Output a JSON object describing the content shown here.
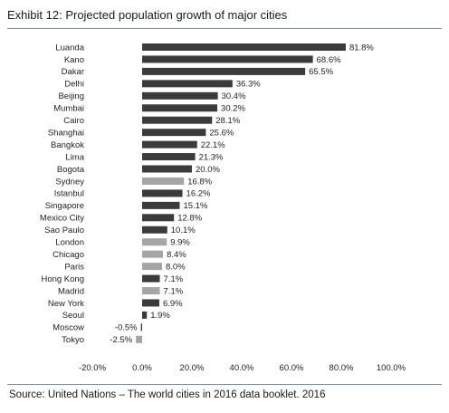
{
  "header": {
    "title": "Exhibit 12: Projected population growth of major cities"
  },
  "footer": {
    "source": "Source: United Nations – The world cities in 2016 data booklet. 2016"
  },
  "colors": {
    "dark": "#3b3b3b",
    "light": "#a5a5a5"
  },
  "chart_data": {
    "type": "bar",
    "orientation": "horizontal",
    "title": "Exhibit 12: Projected population growth of major cities",
    "categories": [
      "Luanda",
      "Kano",
      "Dakar",
      "Delhi",
      "Beijing",
      "Mumbai",
      "Cairo",
      "Shanghai",
      "Bangkok",
      "Lima",
      "Bogota",
      "Sydney",
      "Istanbul",
      "Singapore",
      "Mexico City",
      "Sao Paulo",
      "London",
      "Chicago",
      "Paris",
      "Hong Kong",
      "Madrid",
      "New York",
      "Seoul",
      "Moscow",
      "Tokyo"
    ],
    "values": [
      81.8,
      68.6,
      65.5,
      36.3,
      30.4,
      30.2,
      28.1,
      25.6,
      22.1,
      21.3,
      20.0,
      16.8,
      16.2,
      15.1,
      12.8,
      10.1,
      9.9,
      8.4,
      8.0,
      7.1,
      7.1,
      6.9,
      1.9,
      -0.5,
      -2.5
    ],
    "value_labels": [
      "81.8%",
      "68.6%",
      "65.5%",
      "36.3%",
      "30.4%",
      "30.2%",
      "28.1%",
      "25.6%",
      "22.1%",
      "21.3%",
      "20.0%",
      "16.8%",
      "16.2%",
      "15.1%",
      "12.8%",
      "10.1%",
      "9.9%",
      "8.4%",
      "8.0%",
      "7.1%",
      "7.1%",
      "6.9%",
      "1.9%",
      "-0.5%",
      "-2.5%"
    ],
    "highlight": [
      "dark",
      "dark",
      "dark",
      "dark",
      "dark",
      "dark",
      "dark",
      "dark",
      "dark",
      "dark",
      "dark",
      "light",
      "dark",
      "dark",
      "dark",
      "dark",
      "light",
      "light",
      "light",
      "dark",
      "light",
      "dark",
      "dark",
      "dark",
      "light"
    ],
    "xlim": [
      -20,
      100
    ],
    "xticks": [
      -20,
      0,
      20,
      40,
      60,
      80,
      100
    ],
    "xtick_labels": [
      "-20.0%",
      "0.0%",
      "20.0%",
      "40.0%",
      "60.0%",
      "80.0%",
      "100.0%"
    ],
    "xlabel": "",
    "ylabel": "",
    "grid": false,
    "legend": "none"
  }
}
